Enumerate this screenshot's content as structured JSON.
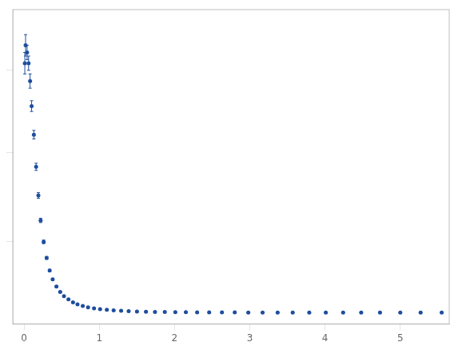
{
  "chart_data": {
    "type": "scatter",
    "x": [
      0.01,
      0.02,
      0.04,
      0.06,
      0.08,
      0.1,
      0.13,
      0.16,
      0.19,
      0.22,
      0.26,
      0.3,
      0.34,
      0.38,
      0.43,
      0.48,
      0.53,
      0.59,
      0.65,
      0.71,
      0.78,
      0.85,
      0.93,
      1.01,
      1.1,
      1.19,
      1.29,
      1.39,
      1.5,
      1.62,
      1.74,
      1.87,
      2.01,
      2.15,
      2.3,
      2.46,
      2.63,
      2.8,
      2.98,
      3.17,
      3.37,
      3.57,
      3.79,
      4.01,
      4.24,
      4.48,
      4.73,
      5.0,
      5.27,
      5.55
    ],
    "values": [
      7.0,
      7.5,
      7.3,
      7.0,
      6.5,
      5.8,
      5.0,
      4.1,
      3.3,
      2.6,
      2.0,
      1.55,
      1.2,
      0.95,
      0.75,
      0.6,
      0.48,
      0.39,
      0.31,
      0.25,
      0.205,
      0.168,
      0.14,
      0.116,
      0.098,
      0.083,
      0.07,
      0.06,
      0.052,
      0.045,
      0.04,
      0.036,
      0.033,
      0.031,
      0.029,
      0.027,
      0.026,
      0.025,
      0.024,
      0.023,
      0.022,
      0.021,
      0.021,
      0.02,
      0.02,
      0.022,
      0.021,
      0.02,
      0.021,
      0.021
    ],
    "yerr": [
      0.3,
      0.3,
      0.2,
      0.2,
      0.2,
      0.15,
      0.12,
      0.1,
      0.08,
      0.06,
      0.05,
      0.04,
      0.03,
      0.025,
      0.02,
      0.015,
      0.012,
      0.01,
      0.008,
      0.006,
      0.005,
      0.004,
      0.003,
      0.003,
      0.002,
      0.002,
      0.002,
      0.001,
      0.001,
      0.001,
      0.001,
      0.001,
      0.001,
      0.001,
      0.001,
      0.001,
      0.001,
      0.001,
      0.001,
      0.001,
      0.001,
      0.001,
      0.001,
      0.001,
      0.001,
      0.002,
      0.002,
      0.002,
      0.002,
      0.003
    ],
    "color": "#1f4e9e",
    "marker": "circle",
    "xlim": [
      -0.15,
      5.65
    ],
    "ylim": [
      -0.3,
      8.5
    ],
    "xticks": [
      0,
      1,
      2,
      3,
      4,
      5
    ],
    "yticks": [
      2.0,
      4.5,
      6.8
    ],
    "tick_labels": "x",
    "grid": false
  }
}
